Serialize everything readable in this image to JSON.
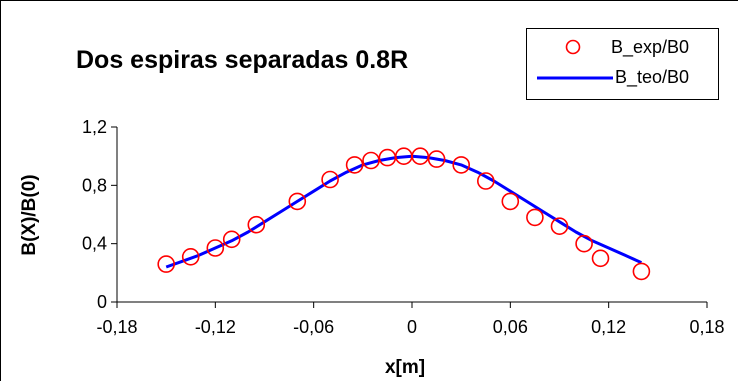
{
  "chart_data": {
    "type": "scatter",
    "title": "Dos espiras separadas 0.8R",
    "xlabel": "x[m]",
    "ylabel": "B(X)/B(0)",
    "xlim": [
      -0.18,
      0.18
    ],
    "ylim": [
      0,
      1.2
    ],
    "x_ticks": [
      "-0,18",
      "-0,12",
      "-0,06",
      "0",
      "0,06",
      "0,12",
      "0,18"
    ],
    "y_ticks": [
      "0",
      "0,4",
      "0,8",
      "1,2"
    ],
    "grid": false,
    "legend_position": "top-right",
    "series": [
      {
        "name": "B_exp/B0",
        "style": "markers",
        "marker": "open-circle",
        "color": "#ff0000",
        "points": [
          [
            -0.15,
            0.26
          ],
          [
            -0.135,
            0.31
          ],
          [
            -0.12,
            0.37
          ],
          [
            -0.11,
            0.43
          ],
          [
            -0.095,
            0.53
          ],
          [
            -0.07,
            0.69
          ],
          [
            -0.05,
            0.84
          ],
          [
            -0.035,
            0.94
          ],
          [
            -0.025,
            0.97
          ],
          [
            -0.015,
            0.99
          ],
          [
            -0.005,
            1.0
          ],
          [
            0.005,
            1.0
          ],
          [
            0.015,
            0.98
          ],
          [
            0.03,
            0.94
          ],
          [
            0.045,
            0.83
          ],
          [
            0.06,
            0.69
          ],
          [
            0.075,
            0.58
          ],
          [
            0.09,
            0.52
          ],
          [
            0.105,
            0.4
          ],
          [
            0.115,
            0.3
          ],
          [
            0.14,
            0.21
          ]
        ]
      },
      {
        "name": "B_teo/B0",
        "style": "line",
        "color": "#0000ff",
        "points": [
          [
            -0.15,
            0.24
          ],
          [
            -0.14,
            0.28
          ],
          [
            -0.13,
            0.32
          ],
          [
            -0.12,
            0.37
          ],
          [
            -0.11,
            0.42
          ],
          [
            -0.1,
            0.48
          ],
          [
            -0.09,
            0.55
          ],
          [
            -0.08,
            0.62
          ],
          [
            -0.07,
            0.69
          ],
          [
            -0.06,
            0.76
          ],
          [
            -0.05,
            0.83
          ],
          [
            -0.04,
            0.89
          ],
          [
            -0.03,
            0.94
          ],
          [
            -0.02,
            0.97
          ],
          [
            -0.01,
            0.99
          ],
          [
            0.0,
            1.0
          ],
          [
            0.01,
            0.99
          ],
          [
            0.02,
            0.97
          ],
          [
            0.03,
            0.94
          ],
          [
            0.04,
            0.89
          ],
          [
            0.05,
            0.83
          ],
          [
            0.06,
            0.76
          ],
          [
            0.07,
            0.69
          ],
          [
            0.08,
            0.62
          ],
          [
            0.09,
            0.55
          ],
          [
            0.1,
            0.48
          ],
          [
            0.11,
            0.42
          ],
          [
            0.12,
            0.37
          ],
          [
            0.13,
            0.32
          ],
          [
            0.14,
            0.27
          ]
        ]
      }
    ]
  }
}
